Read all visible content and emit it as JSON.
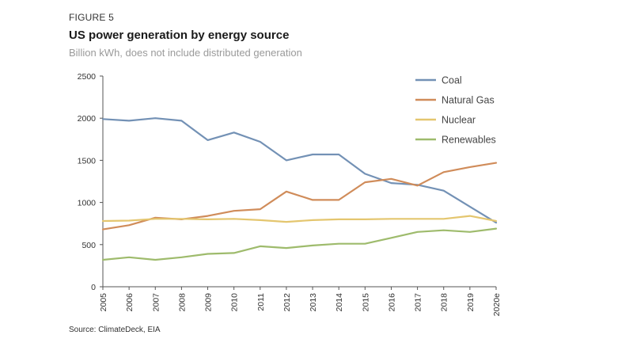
{
  "header": {
    "figure_label": "FIGURE 5",
    "title": "US power generation by energy source",
    "subtitle": "Billion kWh, does not include distributed generation"
  },
  "footer": {
    "source": "Source: ClimateDeck, EIA"
  },
  "chart_data": {
    "type": "line",
    "title": "US power generation by energy source",
    "subtitle": "Billion kWh, does not include distributed generation",
    "xlabel": "",
    "ylabel": "",
    "ylim": [
      0,
      2500
    ],
    "yticks": [
      "0",
      "500",
      "1000",
      "1500",
      "2000",
      "2500"
    ],
    "grid": false,
    "legend_position": "top-right",
    "categories": [
      "2005",
      "2006",
      "2007",
      "2008",
      "2009",
      "2010",
      "2011",
      "2012",
      "2013",
      "2014",
      "2015",
      "2016",
      "2017",
      "2018",
      "2019",
      "2020e"
    ],
    "series": [
      {
        "name": "Coal",
        "color": "#7391b5",
        "values": [
          1990,
          1970,
          2000,
          1970,
          1740,
          1830,
          1720,
          1500,
          1570,
          1570,
          1340,
          1230,
          1210,
          1140,
          950,
          760
        ]
      },
      {
        "name": "Natural Gas",
        "color": "#d08c5a",
        "values": [
          680,
          730,
          820,
          800,
          840,
          900,
          920,
          1130,
          1030,
          1030,
          1240,
          1280,
          1200,
          1360,
          1420,
          1470
        ]
      },
      {
        "name": "Nuclear",
        "color": "#e4c66f",
        "values": [
          780,
          785,
          805,
          805,
          800,
          805,
          790,
          770,
          790,
          800,
          800,
          805,
          805,
          805,
          840,
          780
        ]
      },
      {
        "name": "Renewables",
        "color": "#9ebb6c",
        "values": [
          320,
          350,
          320,
          350,
          390,
          400,
          480,
          460,
          490,
          510,
          510,
          580,
          650,
          670,
          650,
          690
        ]
      }
    ]
  }
}
